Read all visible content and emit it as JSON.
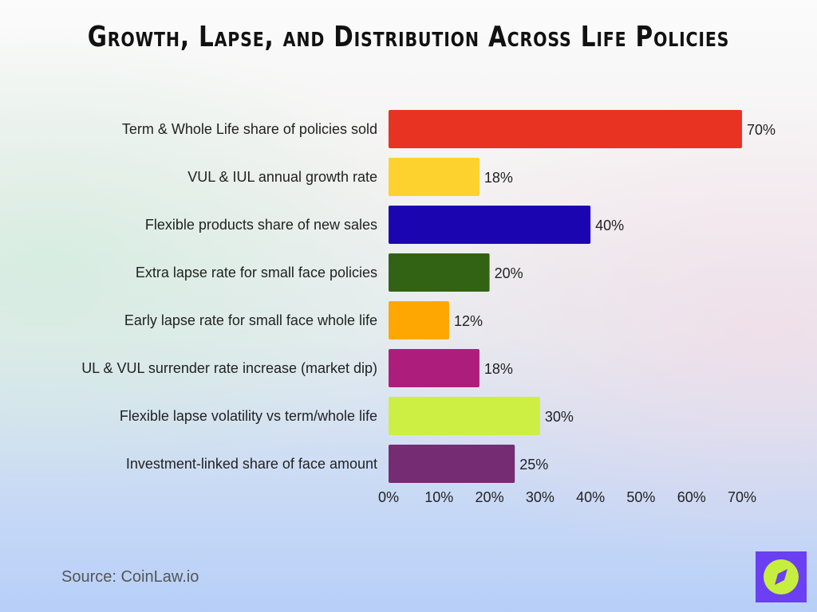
{
  "title": "Growth, Lapse, and Distribution Across Life Policies",
  "source": "Source: CoinLaw.io",
  "logo": {
    "icon": "compass-icon",
    "colors": [
      "#6b3ff2",
      "#c6ee3f"
    ]
  },
  "chart_data": {
    "type": "bar",
    "orientation": "horizontal",
    "categories": [
      "Term & Whole Life share of policies sold",
      "VUL & IUL annual growth rate",
      "Flexible products share of new sales",
      "Extra lapse rate for small face policies",
      "Early lapse rate for small face whole life",
      "UL & VUL surrender rate increase (market dip)",
      "Flexible lapse volatility vs term/whole life",
      "Investment-linked share of face amount"
    ],
    "values": [
      70,
      18,
      40,
      20,
      12,
      18,
      30,
      25
    ],
    "data_labels": [
      "70%",
      "18%",
      "40%",
      "20%",
      "12%",
      "18%",
      "30%",
      "25%"
    ],
    "colors": [
      "#e83222",
      "#fed22e",
      "#1a05b0",
      "#326213",
      "#fea702",
      "#ad1e7c",
      "#cdee43",
      "#762c72"
    ],
    "xlim": [
      0,
      70
    ],
    "xticks": [
      "0%",
      "10%",
      "20%",
      "30%",
      "40%",
      "50%",
      "60%",
      "70%"
    ],
    "grid": false
  }
}
